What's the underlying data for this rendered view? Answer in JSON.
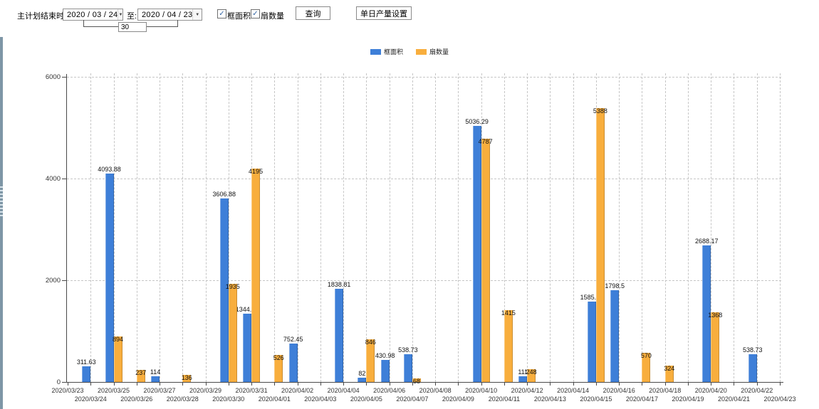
{
  "toolbar": {
    "plan_end_label": "主计划结束时间:",
    "date_from": "2020 / 03 / 24",
    "to_label": "至:",
    "date_to": "2020 / 04 / 23",
    "days_value": "30",
    "checkbox_frame_area": "框面积",
    "checkbox_sash_count": "扇数量",
    "query_button": "查询",
    "daily_output_button": "单日产量设置"
  },
  "icons": {
    "dropdown": "▼",
    "check": "✓"
  },
  "colors": {
    "series_blue": "#3E7FD8",
    "series_orange": "#F8AE3D",
    "grid": "#c6c6c6",
    "axis": "#4a4a4a"
  },
  "chart_data": {
    "type": "bar",
    "title": "",
    "xlabel": "",
    "ylabel": "",
    "ylim": [
      0,
      6000
    ],
    "yticks": [
      0,
      2000,
      4000,
      6000
    ],
    "grid": true,
    "legend_position": "top-center",
    "categories": [
      "2020/03/23",
      "2020/03/24",
      "2020/03/25",
      "2020/03/26",
      "2020/03/27",
      "2020/03/28",
      "2020/03/29",
      "2020/03/30",
      "2020/03/31",
      "2020/04/01",
      "2020/04/02",
      "2020/04/03",
      "2020/04/04",
      "2020/04/05",
      "2020/04/06",
      "2020/04/07",
      "2020/04/08",
      "2020/04/09",
      "2020/04/10",
      "2020/04/11",
      "2020/04/12",
      "2020/04/13",
      "2020/04/14",
      "2020/04/15",
      "2020/04/16",
      "2020/04/17",
      "2020/04/18",
      "2020/04/19",
      "2020/04/20",
      "2020/04/21",
      "2020/04/22",
      "2020/04/23"
    ],
    "series": [
      {
        "name": "框面积",
        "color": "#3E7FD8",
        "values": [
          null,
          311.63,
          4093.88,
          null,
          114,
          null,
          null,
          3606.88,
          1344.95,
          null,
          752.45,
          null,
          1838.81,
          82,
          430.98,
          538.73,
          null,
          null,
          5036.29,
          null,
          111,
          null,
          null,
          1585.96,
          1798.5,
          null,
          null,
          null,
          2688.17,
          null,
          538.73,
          null
        ]
      },
      {
        "name": "扇数量",
        "color": "#F8AE3D",
        "values": [
          null,
          null,
          894,
          237,
          null,
          136,
          null,
          1935,
          4195,
          526,
          null,
          null,
          null,
          846,
          null,
          68,
          null,
          null,
          4787,
          1415,
          248,
          null,
          null,
          5388,
          null,
          570,
          324,
          null,
          1368,
          null,
          null,
          null
        ]
      }
    ]
  }
}
